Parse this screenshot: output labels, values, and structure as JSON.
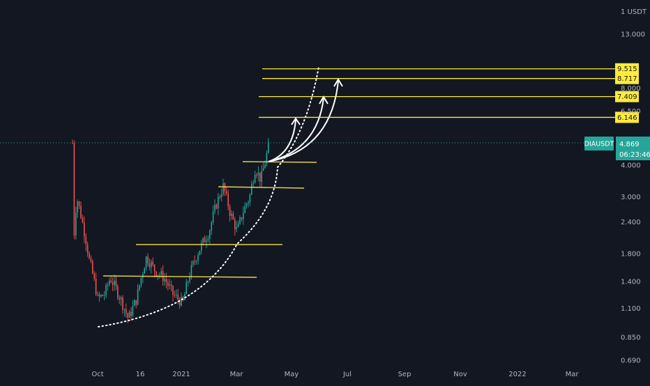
{
  "chart_data": {
    "type": "candlestick",
    "symbol": "DIAUSDT",
    "y_axis": {
      "unit": "USDT",
      "scale": "log",
      "side": "right",
      "tick_labels": [
        "13.000",
        "8.000",
        "6.500",
        "4.000",
        "3.000",
        "2.400",
        "1.800",
        "1.400",
        "1.100",
        "0.850",
        "0.690"
      ]
    },
    "x_axis": {
      "tick_labels": [
        "Oct",
        "16",
        "2021",
        "Mar",
        "May",
        "Jul",
        "Sep",
        "Nov",
        "2022",
        "Mar"
      ]
    },
    "grid": false,
    "last_price": {
      "label": "DIAUSDT",
      "value": "4.869",
      "countdown": "06:23:46",
      "color": "#26a69a"
    },
    "target_levels": [
      {
        "value": "9.515",
        "color": "#ffeb3b"
      },
      {
        "value": "8.717",
        "color": "#ffeb3b"
      },
      {
        "value": "7.409",
        "color": "#ffeb3b"
      },
      {
        "value": "6.146",
        "color": "#ffeb3b"
      }
    ],
    "support_levels": [
      4.1,
      3.3,
      1.95,
      1.47
    ],
    "series_approx": [
      {
        "period": "Sep",
        "high": 4.1,
        "low": 1.75
      },
      {
        "period": "Oct",
        "high": 2.9,
        "low": 1.0
      },
      {
        "period": "Nov",
        "high": 1.95,
        "low": 0.95
      },
      {
        "period": "Dec",
        "high": 1.9,
        "low": 1.05
      },
      {
        "period": "Jan",
        "high": 3.2,
        "low": 1.25
      },
      {
        "period": "Feb",
        "high": 4.1,
        "low": 2.0
      },
      {
        "period": "Mar",
        "high": 5.3,
        "low": 3.2
      }
    ],
    "colors": {
      "up": "#26a69a",
      "down": "#ef5350",
      "background": "#131722",
      "axis_text": "#b2b5be",
      "level": "#ffeb3b",
      "drawing": "#ffffff"
    }
  }
}
